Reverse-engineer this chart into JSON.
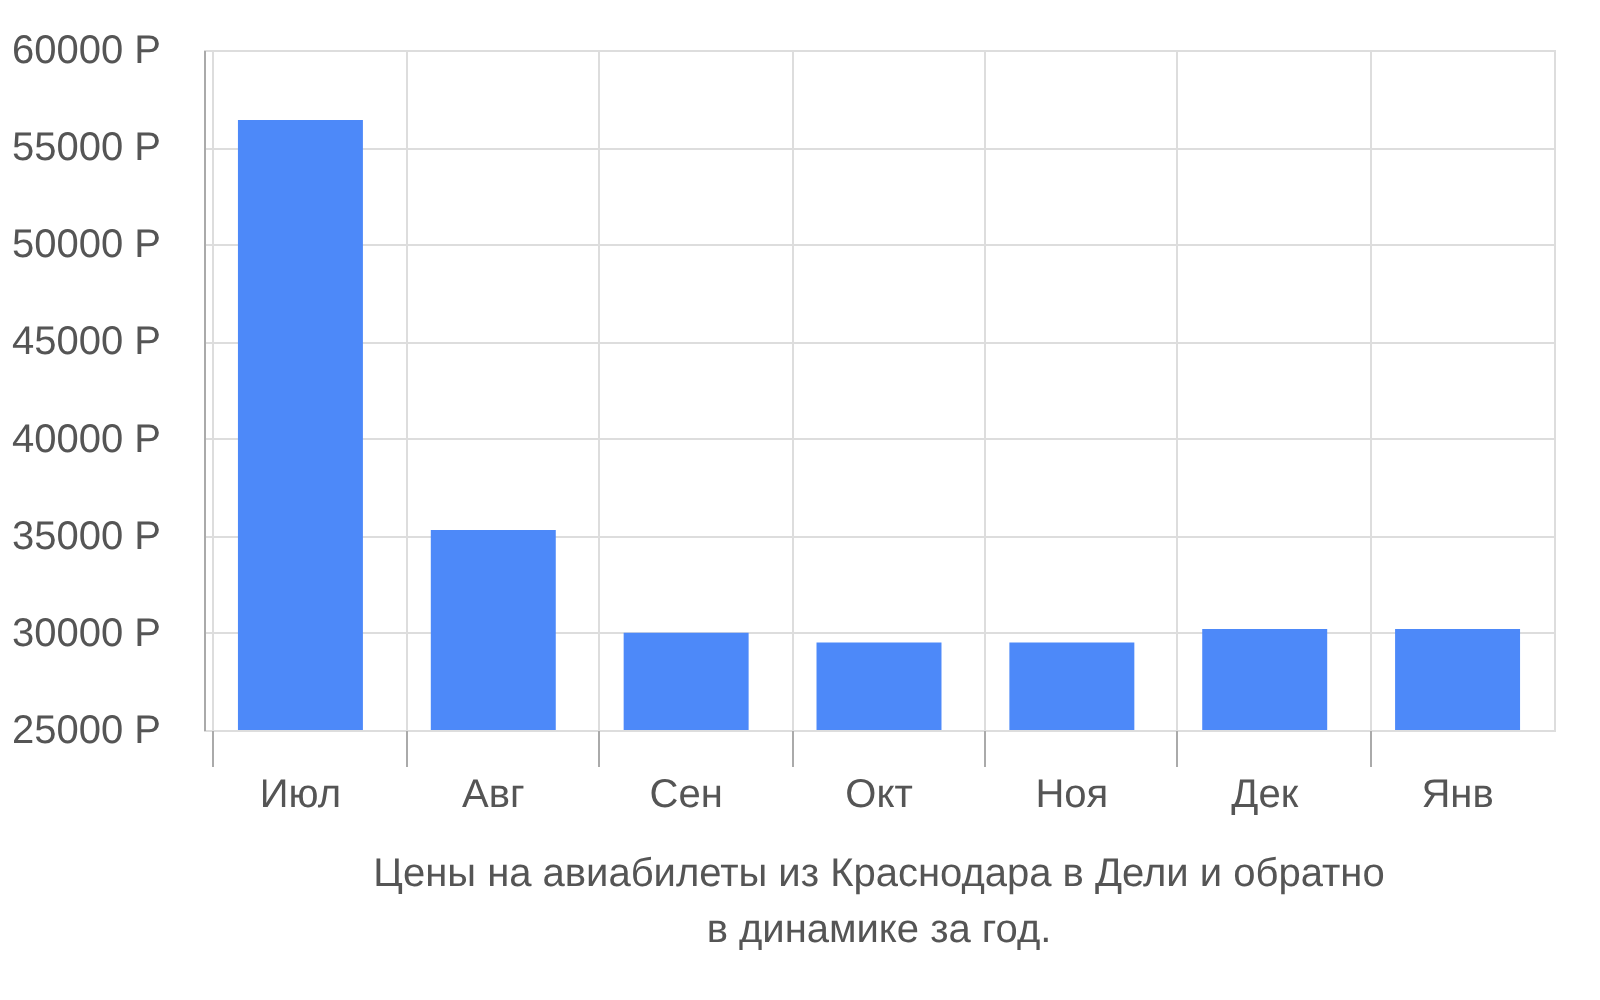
{
  "chart_data": {
    "type": "bar",
    "title": "Цены на авиабилеты из Краснодара в Дели и обратно\nв динамике за год.",
    "categories": [
      "Июл",
      "Авг",
      "Сен",
      "Окт",
      "Ноя",
      "Дек",
      "Янв"
    ],
    "values": [
      56400,
      35300,
      30000,
      29500,
      29500,
      30200,
      30200
    ],
    "color": "#4d89f9",
    "ylim": [
      25000,
      60000
    ],
    "yticks": [
      {
        "value": 25000,
        "label": "25000 Р"
      },
      {
        "value": 30000,
        "label": "30000 Р"
      },
      {
        "value": 35000,
        "label": "35000 Р"
      },
      {
        "value": 40000,
        "label": "40000 Р"
      },
      {
        "value": 45000,
        "label": "45000 Р"
      },
      {
        "value": 50000,
        "label": "50000 Р"
      },
      {
        "value": 55000,
        "label": "55000 Р"
      },
      {
        "value": 60000,
        "label": "60000 Р"
      }
    ],
    "grid": true
  }
}
